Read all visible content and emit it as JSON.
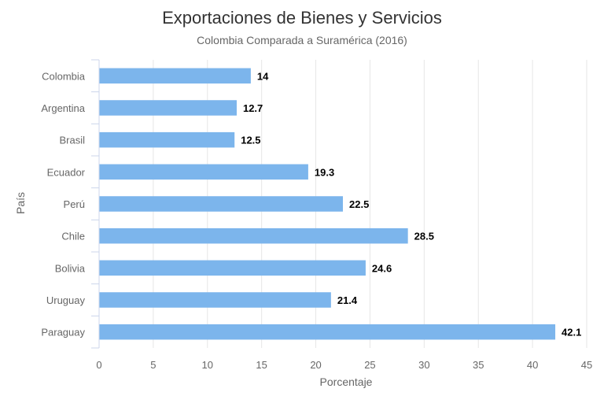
{
  "chart_data": {
    "type": "bar",
    "orientation": "horizontal",
    "title": "Exportaciones de Bienes y Servicios",
    "subtitle": "Colombia Comparada a Suramérica (2016)",
    "xlabel": "Porcentaje",
    "ylabel": "País",
    "categories": [
      "Colombia",
      "Argentina",
      "Brasil",
      "Ecuador",
      "Perú",
      "Chile",
      "Bolivia",
      "Uruguay",
      "Paraguay"
    ],
    "values": [
      14,
      12.7,
      12.5,
      19.3,
      22.5,
      28.5,
      24.6,
      21.4,
      42.1
    ],
    "xlim": [
      0,
      45
    ],
    "xticks": [
      "0",
      "5",
      "10",
      "15",
      "20",
      "25",
      "30",
      "35",
      "40",
      "45"
    ],
    "grid": true,
    "data_labels": true,
    "bar_color": "#7cb5ec"
  }
}
